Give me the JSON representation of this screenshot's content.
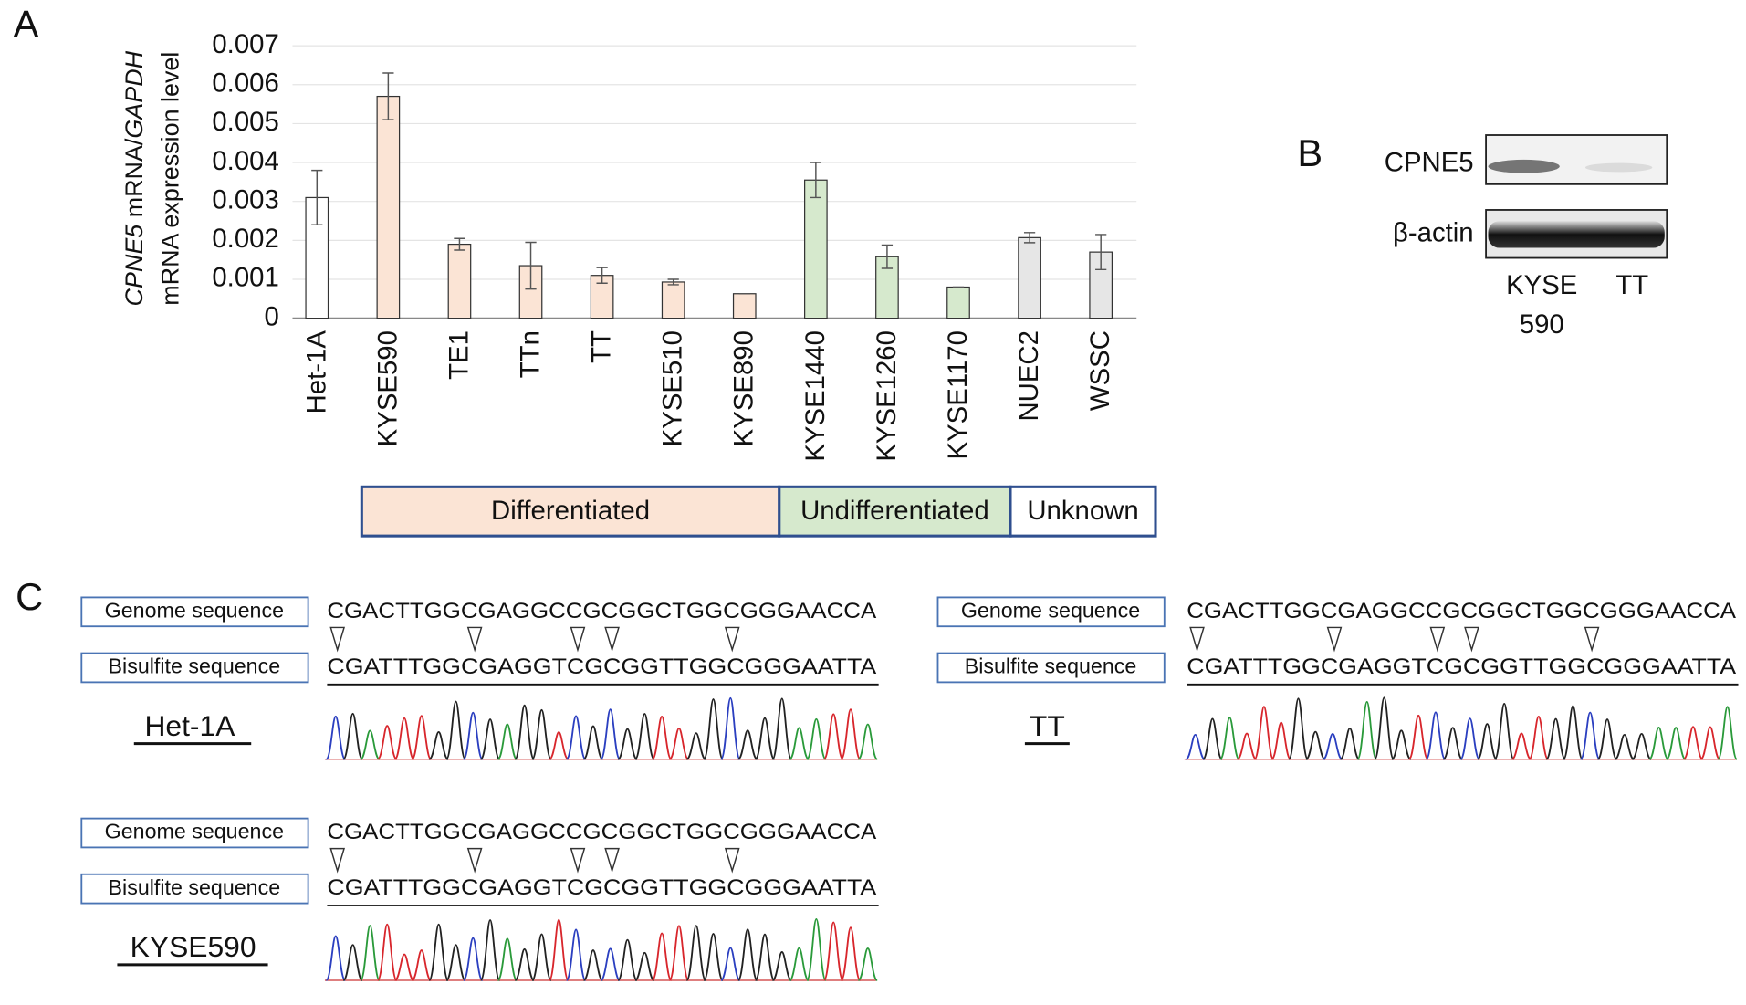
{
  "panel_labels": [
    "A",
    "B",
    "C"
  ],
  "chart_data": {
    "type": "bar",
    "ylabel": {
      "line1": [
        "CPNE5",
        " mRNA/",
        "GAPDH"
      ],
      "line2": "mRNA expression level"
    },
    "categories": [
      "Het-1A",
      "KYSE590",
      "TE1",
      "TTn",
      "TT",
      "KYSE510",
      "KYSE890",
      "KYSE1440",
      "KYSE1260",
      "KYSE1170",
      "NUEC2",
      "WSSC"
    ],
    "values": [
      0.0031,
      0.0057,
      0.0019,
      0.00135,
      0.0011,
      0.00093,
      0.00063,
      0.00355,
      0.00158,
      0.0008,
      0.00207,
      0.0017
    ],
    "errors": [
      0.0007,
      0.0006,
      0.00015,
      0.0006,
      0.0002,
      7e-05,
      0,
      0.00045,
      0.0003,
      0,
      0.00013,
      0.00045
    ],
    "colors": [
      "#ffffff",
      "#fbe4d5",
      "#fbe4d5",
      "#fbe4d5",
      "#fbe4d5",
      "#fbe4d5",
      "#fbe4d5",
      "#d6e9cd",
      "#d6e9cd",
      "#d6e9cd",
      "#e6e6e6",
      "#e6e6e6"
    ],
    "ylim": [
      0,
      0.007
    ],
    "yticks": [
      0,
      0.001,
      0.002,
      0.003,
      0.004,
      0.005,
      0.006,
      0.007
    ],
    "grid": true,
    "groups": [
      {
        "label": "Differentiated",
        "color": "#fbe4d5"
      },
      {
        "label": "Undifferentiated",
        "color": "#d6e9cd"
      },
      {
        "label": "Unknown",
        "color": "#ffffff"
      }
    ]
  },
  "western_blot": {
    "rows": [
      "CPNE5",
      "β-actin"
    ],
    "lanes": [
      [
        "KYSE",
        "590"
      ],
      [
        "TT"
      ]
    ]
  },
  "sequencing": {
    "genome_label": "Genome sequence",
    "bisulfite_label": "Bisulfite sequence",
    "samples": [
      {
        "name": "Het-1A",
        "genome": "CGACTTGGCGAGGCCGCGGCTGGCGGGAACCA",
        "bisulfite": "CGATTTGGCGAGGTCGCGGTTGGCGGGAATTA"
      },
      {
        "name": "TT",
        "genome": "CGACTTGGCGAGGCCGCGGCTGGCGGGAACCA",
        "bisulfite": "CGATTTGGCGAGGTCGCGGTTGGCGGGAATTA"
      },
      {
        "name": "KYSE590",
        "genome": "CGACTTGGCGAGGCCGCGGCTGGCGGGAACCA",
        "bisulfite": "CGATTTGGCGAGGTCGCGGTTGGCGGGAATTA"
      }
    ]
  }
}
